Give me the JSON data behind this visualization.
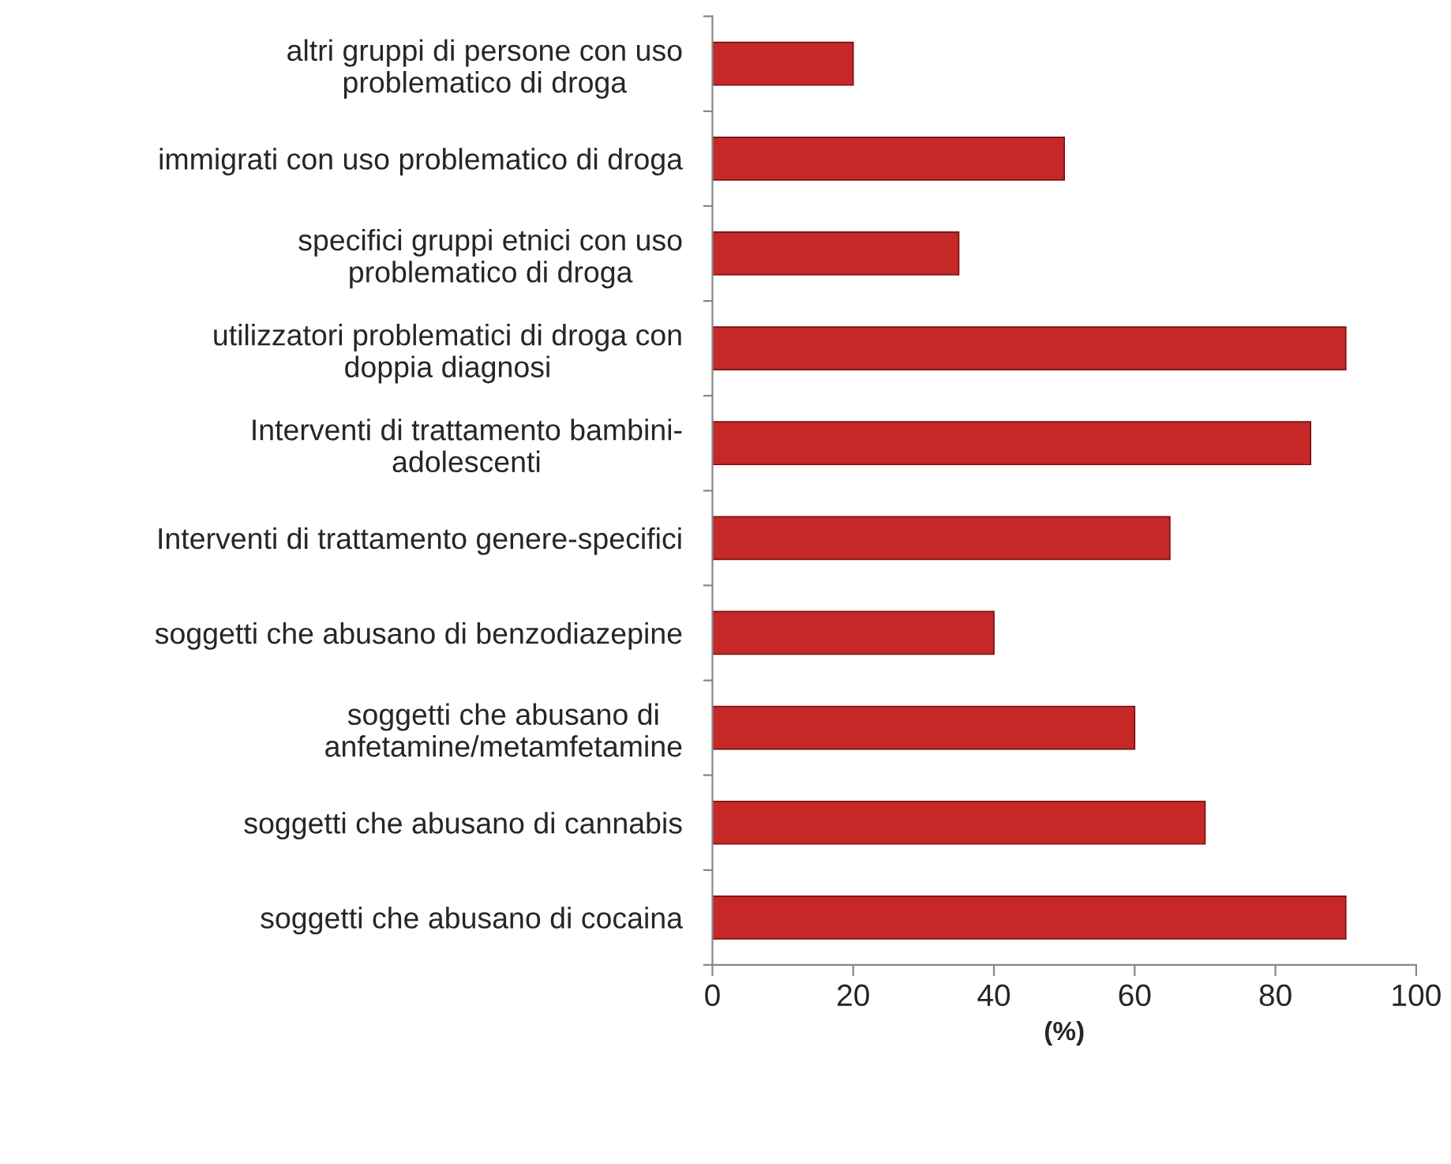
{
  "chart_data": {
    "type": "bar",
    "orientation": "horizontal",
    "xlabel": "(%)",
    "categories": [
      "altri gruppi di persone con uso\nproblematico di droga",
      "immigrati con uso problematico di droga",
      "specifici gruppi etnici con uso\nproblematico di droga",
      "utilizzatori problematici di droga con\ndoppia diagnosi",
      "Interventi di trattamento bambini-\nadolescenti",
      "Interventi di trattamento genere-specifici",
      "soggetti che abusano di benzodiazepine",
      "soggetti che abusano di\nanfetamine/metamfetamine",
      "soggetti che abusano di cannabis",
      "soggetti che abusano di cocaina"
    ],
    "values": [
      20,
      50,
      35,
      90,
      85,
      65,
      40,
      60,
      70,
      90
    ],
    "color": "#c62828",
    "xlim": [
      0,
      100
    ],
    "xticks": [
      0,
      20,
      40,
      60,
      80,
      100
    ],
    "grid": false,
    "legend": false
  }
}
